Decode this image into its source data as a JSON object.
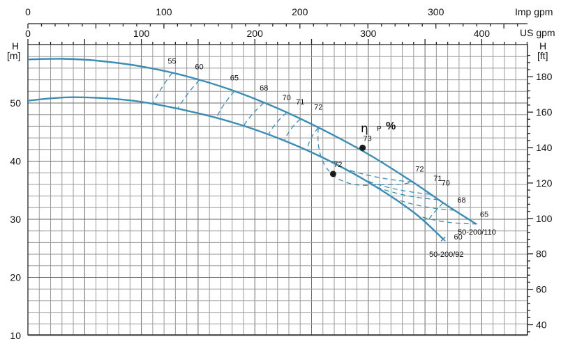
{
  "chart_data": {
    "type": "line",
    "top_axis_1": {
      "label": "Imp gpm",
      "ticks": [
        "0",
        "100",
        "200",
        "300"
      ],
      "values": [
        0,
        100,
        200,
        300
      ]
    },
    "top_axis_2": {
      "label": "US gpm",
      "ticks": [
        "0",
        "100",
        "200",
        "300",
        "400"
      ],
      "values": [
        0,
        100,
        200,
        300,
        400
      ]
    },
    "left_axis": {
      "label_line1": "H",
      "label_line2": "[m]",
      "ticks": [
        "10",
        "20",
        "30",
        "40",
        "50"
      ],
      "values": [
        10,
        20,
        30,
        40,
        50
      ],
      "range": [
        10,
        59.5
      ]
    },
    "right_axis": {
      "label_line1": "H",
      "label_line2": "[ft]",
      "ticks": [
        "40",
        "60",
        "80",
        "100",
        "120",
        "140",
        "160",
        "180"
      ],
      "values": [
        40,
        60,
        80,
        100,
        120,
        140,
        160,
        180
      ]
    },
    "x_range_usgpm": [
      0,
      440
    ],
    "grid": true,
    "colors": {
      "curve": "#3b8db5",
      "text": "#111111",
      "grid": "#9a9a9a"
    },
    "eff_label": {
      "symbol": "η",
      "sub": "P",
      "unit": "%"
    },
    "series": [
      {
        "name": "50-200/110",
        "x": [
          0,
          30,
          60,
          100,
          140,
          180,
          220,
          260,
          300,
          340,
          370,
          395
        ],
        "y": [
          57.5,
          57.6,
          57.3,
          56.3,
          54.6,
          52.2,
          49.1,
          45.4,
          41.2,
          36.3,
          32.3,
          29.2
        ]
      },
      {
        "name": "50-200/92",
        "x": [
          0,
          20,
          40,
          70,
          100,
          140,
          180,
          220,
          260,
          300,
          340,
          366
        ],
        "y": [
          50.4,
          50.8,
          51.0,
          50.8,
          50.2,
          48.7,
          46.7,
          44.0,
          40.6,
          36.4,
          31.2,
          26.6
        ]
      }
    ],
    "efficiency_labels_left": [
      {
        "label": "55",
        "x": 127,
        "y": 56.3
      },
      {
        "label": "60",
        "x": 151,
        "y": 55.3
      },
      {
        "label": "65",
        "x": 182,
        "y": 53.4
      },
      {
        "label": "68",
        "x": 208,
        "y": 51.7
      },
      {
        "label": "70",
        "x": 228,
        "y": 50.0
      },
      {
        "label": "71",
        "x": 240,
        "y": 49.3
      },
      {
        "label": "72",
        "x": 256,
        "y": 48.4
      }
    ],
    "efficiency_labels_right": [
      {
        "label": "72",
        "x": 339,
        "y": 38.2
      },
      {
        "label": "71",
        "x": 355,
        "y": 36.6
      },
      {
        "label": "70",
        "x": 362,
        "y": 35.8
      },
      {
        "label": "68",
        "x": 376,
        "y": 32.9
      },
      {
        "label": "65",
        "x": 396,
        "y": 30.4
      },
      {
        "label": "60",
        "x": 373,
        "y": 26.5
      }
    ],
    "efficiency_points": [
      {
        "label": "73",
        "x": 295,
        "y": 42.3
      },
      {
        "label": "72",
        "x": 269,
        "y": 37.8
      }
    ],
    "model_labels": [
      "50-200/110",
      "50-200/92"
    ]
  }
}
